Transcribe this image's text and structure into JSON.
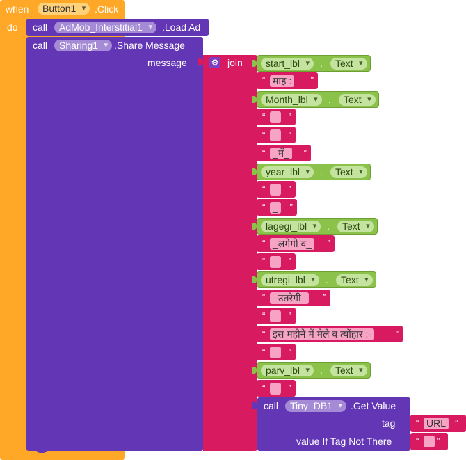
{
  "event": {
    "when": "when",
    "component": "Button1",
    "event_name": ".Click",
    "do": "do"
  },
  "admob": {
    "call": "call",
    "component": "AdMob_Interstitial1",
    "method": ".Load Ad"
  },
  "sharing": {
    "call": "call",
    "component": "Sharing1",
    "method": ".Share Message",
    "param": "message"
  },
  "join": {
    "label": "join",
    "gear": "gear-icon"
  },
  "dot": ".",
  "text_prop": "Text",
  "items": [
    {
      "kind": "prop",
      "component": "start_lbl"
    },
    {
      "kind": "text",
      "value": "माह :"
    },
    {
      "kind": "prop",
      "component": "Month_lbl"
    },
    {
      "kind": "text",
      "value": ""
    },
    {
      "kind": "text",
      "value": ""
    },
    {
      "kind": "text",
      "value": "_में_"
    },
    {
      "kind": "prop",
      "component": "year_lbl"
    },
    {
      "kind": "text",
      "value": ""
    },
    {
      "kind": "text",
      "value": "_"
    },
    {
      "kind": "prop",
      "component": "lagegi_lbl"
    },
    {
      "kind": "text",
      "value": "_लगेगी व_"
    },
    {
      "kind": "text",
      "value": ""
    },
    {
      "kind": "prop",
      "component": "utregi_lbl"
    },
    {
      "kind": "text",
      "value": "_उतरेगी_"
    },
    {
      "kind": "text",
      "value": ""
    },
    {
      "kind": "text",
      "value": "इस महीने में मेले व त्योंहार :-"
    },
    {
      "kind": "text",
      "value": ""
    },
    {
      "kind": "prop",
      "component": "parv_lbl"
    },
    {
      "kind": "text",
      "value": ""
    }
  ],
  "getvalue": {
    "call": "call",
    "component": "Tiny_DB1",
    "method": ".Get Value",
    "tag_label": "tag",
    "tag_value": "URL",
    "default_label": "value If Tag Not There",
    "default_value": ""
  },
  "colors": {
    "event": "#ffa828",
    "procedure": "#6236b4",
    "text": "#d81b60",
    "component": "#8bc34a"
  }
}
